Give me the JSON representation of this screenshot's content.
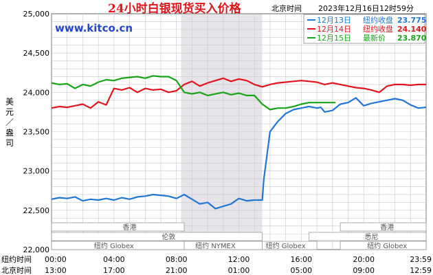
{
  "colors": {
    "series_blue": "#1f76d6",
    "series_red": "#e1141b",
    "series_green": "#17a317",
    "grid": "#c9c9c9",
    "session_shade": "#e6e3e9",
    "title": "#e0141b",
    "brand": "#2447c9"
  },
  "header": {
    "title": "24小时白银现货买入价格",
    "brand": "www.kitco.cn",
    "tz_label": "北京时间",
    "timestamp": "2023年12月16日12时59分"
  },
  "legend": [
    {
      "label": "12月13日",
      "desc": "纽约收盘",
      "value": "23.775",
      "color": "#1f76d6"
    },
    {
      "label": "12月14日",
      "desc": "纽约收盘",
      "value": "24.140",
      "color": "#e1141b"
    },
    {
      "label": "12月15日",
      "desc": "最新价",
      "value": "23.870",
      "color": "#17a317"
    }
  ],
  "y_axis": {
    "label": "美元／盎司",
    "ticks": [
      "25,000",
      "24,500",
      "24,000",
      "23,500",
      "23,000",
      "22,500",
      "22,000"
    ]
  },
  "x_axis": {
    "ny_label": "纽约时间",
    "bj_label": "北京时间",
    "ny_ticks": [
      "00:00",
      "04:00",
      "08:00",
      "12:00",
      "16:00",
      "20:00",
      "23:59"
    ],
    "bj_ticks": [
      "13:00",
      "17:00",
      "21:00",
      "01:00",
      "05:00",
      "09:00",
      "12:59"
    ]
  },
  "sessions": {
    "hongkong": "香港",
    "london": "伦敦",
    "ny_globex": "纽约 Globex",
    "ny_nymex": "纽约 NYMEX",
    "sydney": "悉尼"
  },
  "chart_data": {
    "type": "line",
    "title": "24小时白银现货买入价格",
    "ylabel": "美元／盎司",
    "ylim": [
      22.0,
      25.0
    ],
    "xlim": [
      0,
      24
    ],
    "grid": true,
    "legend_position": "top-right",
    "series": [
      {
        "name": "12月13日",
        "color": "#1f76d6",
        "points": [
          [
            0,
            22.64
          ],
          [
            0.5,
            22.66
          ],
          [
            1,
            22.65
          ],
          [
            1.5,
            22.67
          ],
          [
            2,
            22.62
          ],
          [
            2.5,
            22.64
          ],
          [
            3,
            22.63
          ],
          [
            3.5,
            22.65
          ],
          [
            4,
            22.63
          ],
          [
            4.5,
            22.66
          ],
          [
            5,
            22.64
          ],
          [
            5.5,
            22.67
          ],
          [
            6,
            22.68
          ],
          [
            6.5,
            22.7
          ],
          [
            7,
            22.69
          ],
          [
            7.5,
            22.68
          ],
          [
            8,
            22.65
          ],
          [
            8.5,
            22.7
          ],
          [
            9,
            22.64
          ],
          [
            9.5,
            22.58
          ],
          [
            10,
            22.6
          ],
          [
            10.5,
            22.52
          ],
          [
            11,
            22.55
          ],
          [
            11.5,
            22.58
          ],
          [
            12,
            22.65
          ],
          [
            12.5,
            22.62
          ],
          [
            13,
            22.63
          ],
          [
            13.5,
            22.63
          ],
          [
            13.6,
            22.89
          ],
          [
            14,
            23.5
          ],
          [
            14.5,
            23.63
          ],
          [
            15,
            23.73
          ],
          [
            15.5,
            23.78
          ],
          [
            16,
            23.8
          ],
          [
            16.5,
            23.82
          ],
          [
            17,
            23.8
          ],
          [
            17.25,
            23.81
          ],
          [
            17.5,
            23.75
          ],
          [
            18,
            23.77
          ],
          [
            18.5,
            23.85
          ],
          [
            19,
            23.87
          ],
          [
            19.5,
            23.93
          ],
          [
            20,
            23.83
          ],
          [
            20.5,
            23.86
          ],
          [
            21,
            23.88
          ],
          [
            21.5,
            23.9
          ],
          [
            22,
            23.92
          ],
          [
            22.5,
            23.9
          ],
          [
            23,
            23.84
          ],
          [
            23.5,
            23.8
          ],
          [
            24,
            23.81
          ]
        ]
      },
      {
        "name": "12月14日",
        "color": "#e1141b",
        "points": [
          [
            0,
            23.8
          ],
          [
            0.5,
            23.82
          ],
          [
            1,
            23.81
          ],
          [
            1.5,
            23.83
          ],
          [
            2,
            23.85
          ],
          [
            2.5,
            23.8
          ],
          [
            3,
            23.88
          ],
          [
            3.5,
            23.84
          ],
          [
            4,
            24.05
          ],
          [
            4.5,
            24.03
          ],
          [
            5,
            24.06
          ],
          [
            5.5,
            24.0
          ],
          [
            6,
            24.05
          ],
          [
            6.5,
            24.03
          ],
          [
            7,
            24.04
          ],
          [
            7.5,
            24.0
          ],
          [
            8,
            24.02
          ],
          [
            8.5,
            24.1
          ],
          [
            9,
            24.14
          ],
          [
            9.5,
            24.08
          ],
          [
            10,
            24.12
          ],
          [
            10.5,
            24.15
          ],
          [
            11,
            24.18
          ],
          [
            11.5,
            24.14
          ],
          [
            12,
            24.17
          ],
          [
            12.5,
            24.15
          ],
          [
            13,
            24.1
          ],
          [
            13.5,
            24.07
          ],
          [
            14,
            24.1
          ],
          [
            14.5,
            24.12
          ],
          [
            15,
            24.13
          ],
          [
            15.5,
            24.14
          ],
          [
            16,
            24.15
          ],
          [
            16.5,
            24.14
          ],
          [
            17,
            24.13
          ],
          [
            17.5,
            24.1
          ],
          [
            18,
            24.12
          ],
          [
            18.5,
            24.1
          ],
          [
            19,
            24.08
          ],
          [
            19.5,
            24.06
          ],
          [
            20,
            24.05
          ],
          [
            20.5,
            24.03
          ],
          [
            21,
            24.0
          ],
          [
            21.5,
            24.08
          ],
          [
            22,
            24.1
          ],
          [
            22.5,
            24.1
          ],
          [
            23,
            24.09
          ],
          [
            23.5,
            24.1
          ],
          [
            24,
            24.1
          ]
        ]
      },
      {
        "name": "12月15日",
        "color": "#17a317",
        "points": [
          [
            0,
            24.12
          ],
          [
            0.5,
            24.1
          ],
          [
            1,
            24.11
          ],
          [
            1.5,
            24.05
          ],
          [
            2,
            24.1
          ],
          [
            2.5,
            24.08
          ],
          [
            3,
            24.13
          ],
          [
            3.5,
            24.16
          ],
          [
            4,
            24.15
          ],
          [
            4.5,
            24.18
          ],
          [
            5,
            24.19
          ],
          [
            5.5,
            24.2
          ],
          [
            6,
            24.18
          ],
          [
            6.5,
            24.21
          ],
          [
            7,
            24.2
          ],
          [
            7.5,
            24.2
          ],
          [
            8,
            24.15
          ],
          [
            8.5,
            24.0
          ],
          [
            9,
            23.98
          ],
          [
            9.5,
            24.0
          ],
          [
            10,
            23.96
          ],
          [
            10.5,
            23.98
          ],
          [
            11,
            24.0
          ],
          [
            11.5,
            23.97
          ],
          [
            12,
            23.99
          ],
          [
            12.5,
            23.96
          ],
          [
            13,
            23.96
          ],
          [
            13.5,
            23.85
          ],
          [
            14,
            23.78
          ],
          [
            14.5,
            23.8
          ],
          [
            15,
            23.8
          ],
          [
            15.5,
            23.82
          ],
          [
            16,
            23.85
          ],
          [
            16.5,
            23.87
          ],
          [
            17,
            23.87
          ],
          [
            17.5,
            23.87
          ],
          [
            18.2,
            23.87
          ]
        ]
      }
    ]
  }
}
